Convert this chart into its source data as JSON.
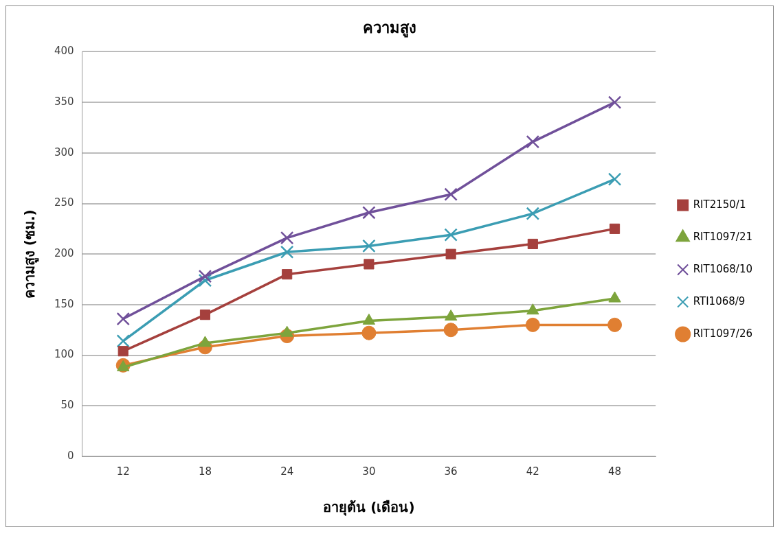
{
  "chart_data": {
    "type": "line",
    "title": "ความสูง",
    "xlabel": "อายุต้น (เดือน)",
    "ylabel": "ความสูง (ซม.)",
    "categories": [
      "12",
      "18",
      "24",
      "30",
      "36",
      "42",
      "48"
    ],
    "series": [
      {
        "name": "RIT2150/1",
        "color": "#a5403d",
        "marker": "square",
        "values": [
          104,
          140,
          180,
          190,
          200,
          210,
          225
        ]
      },
      {
        "name": "RIT1097/21",
        "color": "#7da43c",
        "marker": "triangle",
        "values": [
          88,
          112,
          122,
          134,
          138,
          144,
          156
        ]
      },
      {
        "name": "RIT1068/10",
        "color": "#70509a",
        "marker": "cross",
        "values": [
          136,
          178,
          216,
          241,
          259,
          311,
          350
        ]
      },
      {
        "name": "RTI1068/9",
        "color": "#3b9db3",
        "marker": "cross",
        "values": [
          114,
          174,
          202,
          208,
          219,
          240,
          274
        ]
      },
      {
        "name": "RIT1097/26",
        "color": "#e07f32",
        "marker": "circle",
        "values": [
          90,
          108,
          119,
          122,
          125,
          130,
          130
        ]
      }
    ],
    "ylim": [
      0,
      400
    ],
    "yticks": [
      0,
      50,
      100,
      150,
      200,
      250,
      300,
      350,
      400
    ],
    "grid": "y",
    "legend": "right",
    "line_style": "solid"
  }
}
